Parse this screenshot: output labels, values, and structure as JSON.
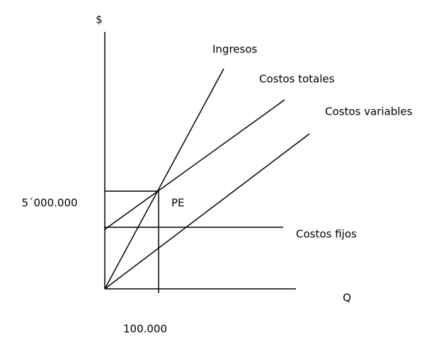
{
  "axes": {
    "y_label": "$",
    "x_label": "Q"
  },
  "lines": [
    {
      "label": "Ingresos"
    },
    {
      "label": "Costos totales"
    },
    {
      "label": "Costos variables"
    },
    {
      "label": "Costos fijos"
    }
  ],
  "break_even": {
    "label": "PE",
    "x_label": "100.000",
    "y_label": "5´000.000"
  }
}
